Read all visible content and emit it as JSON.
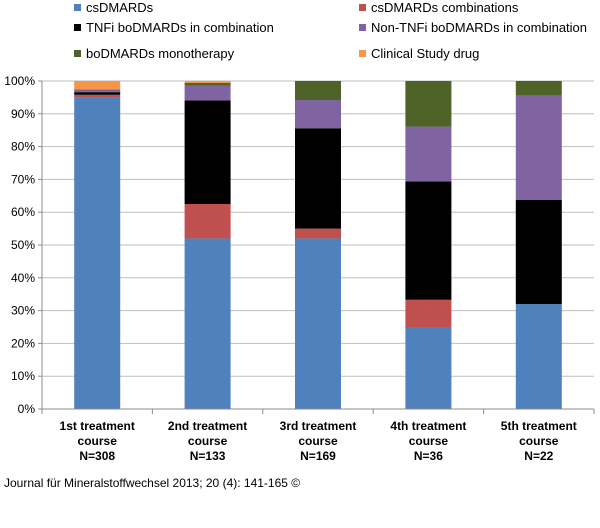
{
  "chart_data": {
    "type": "bar",
    "stacked": true,
    "ylim": [
      0,
      100
    ],
    "ytick_step": 10,
    "ytick_suffix": "%",
    "legend_position": "top",
    "categories": [
      [
        "1st treatment",
        "course",
        "N=308"
      ],
      [
        "2nd treatment",
        "course",
        "N=133"
      ],
      [
        "3rd treatment",
        "course",
        "N=169"
      ],
      [
        "4th treatment",
        "course",
        "N=36"
      ],
      [
        "5th treatment",
        "course",
        "N=22"
      ]
    ],
    "series": [
      {
        "name": "csDMARDs",
        "color": "#4F81BD",
        "values": [
          95,
          52,
          52,
          25,
          32
        ]
      },
      {
        "name": "csDMARDs combinations",
        "color": "#C0504D",
        "values": [
          0.8,
          10.5,
          3,
          8.3,
          0
        ]
      },
      {
        "name": "TNFi boDMARDs in combination",
        "color": "#000000",
        "values": [
          0.8,
          31.6,
          30.6,
          36.1,
          31.8
        ]
      },
      {
        "name": "Non-TNFi boDMARDs in combination",
        "color": "#8064A2",
        "values": [
          0.8,
          4.5,
          8.6,
          16.7,
          31.8
        ]
      },
      {
        "name": "boDMARDs monotherapy",
        "color": "#4F6228",
        "values": [
          0,
          0.8,
          5.8,
          13.9,
          4.4
        ]
      },
      {
        "name": "Clinical Study drug",
        "color": "#F79646",
        "values": [
          2.6,
          0.6,
          0,
          0,
          0
        ]
      }
    ]
  },
  "citation": "Journal für Mineralstoffwechsel 2013; 20 (4): 141-165 ©"
}
